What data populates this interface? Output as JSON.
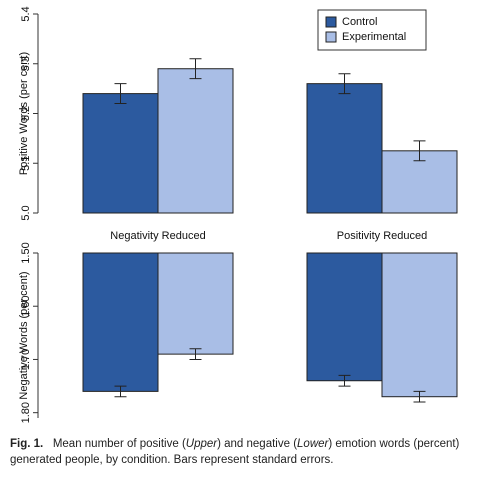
{
  "chart_data": [
    {
      "type": "bar",
      "y_label": "Positive Words (per cent)",
      "ylim": [
        5.0,
        5.4
      ],
      "yticks": [
        {
          "value": 5.0,
          "label": "5.0"
        },
        5.1,
        5.2,
        5.3,
        5.4
      ],
      "legend": "top-right",
      "series": [
        {
          "name": "Control",
          "color": "#2c5a9f",
          "values": [
            5.24,
            5.26
          ],
          "errors": [
            0.02,
            0.02
          ]
        },
        {
          "name": "Experimental",
          "color": "#a9bee6",
          "values": [
            5.29,
            5.125
          ],
          "errors": [
            0.02,
            0.02
          ]
        }
      ]
    },
    {
      "type": "bar",
      "y_label": "Negative Words (per cent)",
      "categories": [
        "Negativity Reduced",
        "Positivity Reduced"
      ],
      "ylim": [
        1.81,
        1.5
      ],
      "yticks": [
        {
          "value": 1.5,
          "label": "1.50"
        },
        {
          "value": 1.6,
          "label": "1.60"
        },
        {
          "value": 1.7,
          "label": "1.70"
        },
        {
          "value": 1.8,
          "label": "1.80"
        }
      ],
      "series": [
        {
          "color": "#2c5a9f",
          "values": [
            1.76,
            1.74
          ],
          "errors": [
            0.01,
            0.01
          ]
        },
        {
          "color": "#a9bee6",
          "values": [
            1.69,
            1.77
          ],
          "errors": [
            0.01,
            0.01
          ]
        }
      ]
    }
  ],
  "caption": {
    "label": "Fig. 1.",
    "parts": [
      "Mean number of positive (",
      "Upper",
      ") and negative (",
      "Lower",
      ") emotion words (percent) generated people, by condition. Bars represent standard errors."
    ]
  }
}
